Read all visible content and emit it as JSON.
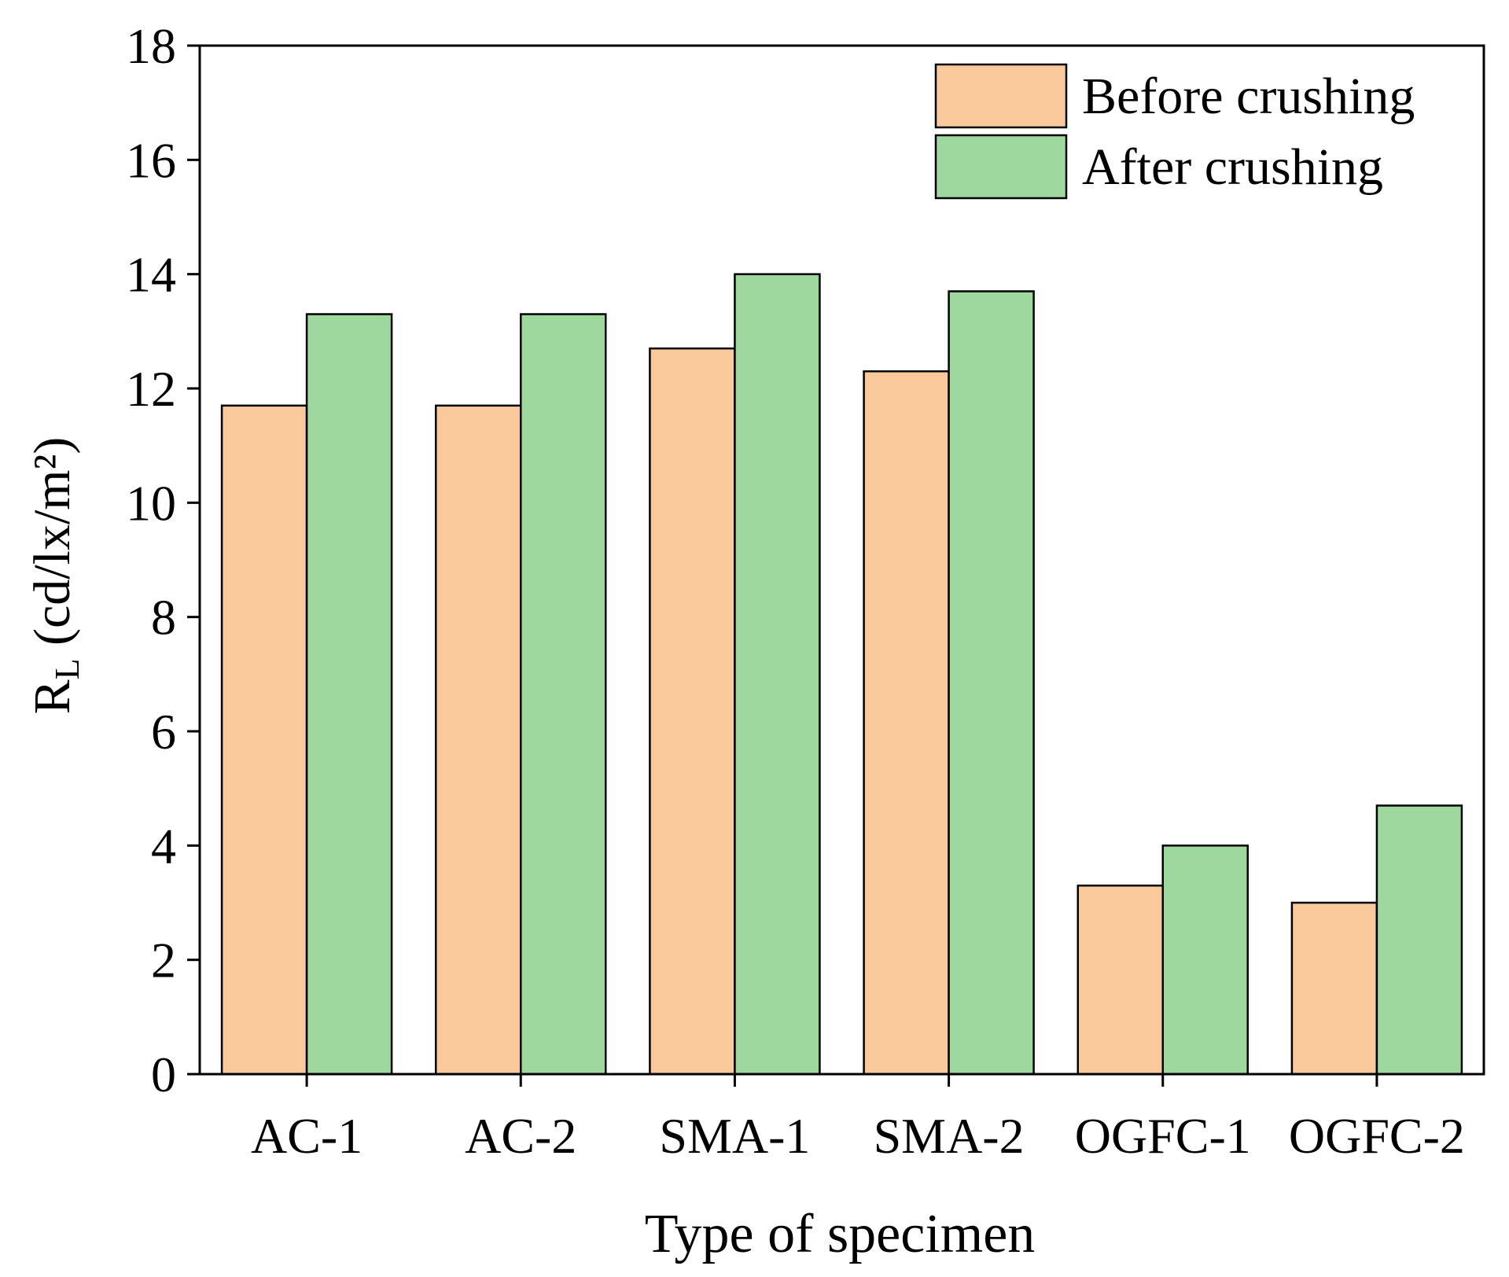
{
  "chart_data": {
    "type": "bar",
    "title": "",
    "xlabel": "Type of specimen",
    "ylabel_main": "R",
    "ylabel_sub": "L",
    "ylabel_unit": " (cd/lx/m²)",
    "categories": [
      "AC-1",
      "AC-2",
      "SMA-1",
      "SMA-2",
      "OGFC-1",
      "OGFC-2"
    ],
    "series": [
      {
        "name": "Before crushing",
        "color": "#F9C89B",
        "values": [
          11.7,
          11.7,
          12.7,
          12.3,
          3.3,
          3.0
        ]
      },
      {
        "name": "After crushing",
        "color": "#9FD89E",
        "values": [
          13.3,
          13.3,
          14.0,
          13.7,
          4.0,
          4.7
        ]
      }
    ],
    "ylim": [
      0,
      18
    ],
    "yticks": [
      0,
      2,
      4,
      6,
      8,
      10,
      12,
      14,
      16,
      18
    ],
    "grid": false,
    "legend_position": "top-right"
  }
}
